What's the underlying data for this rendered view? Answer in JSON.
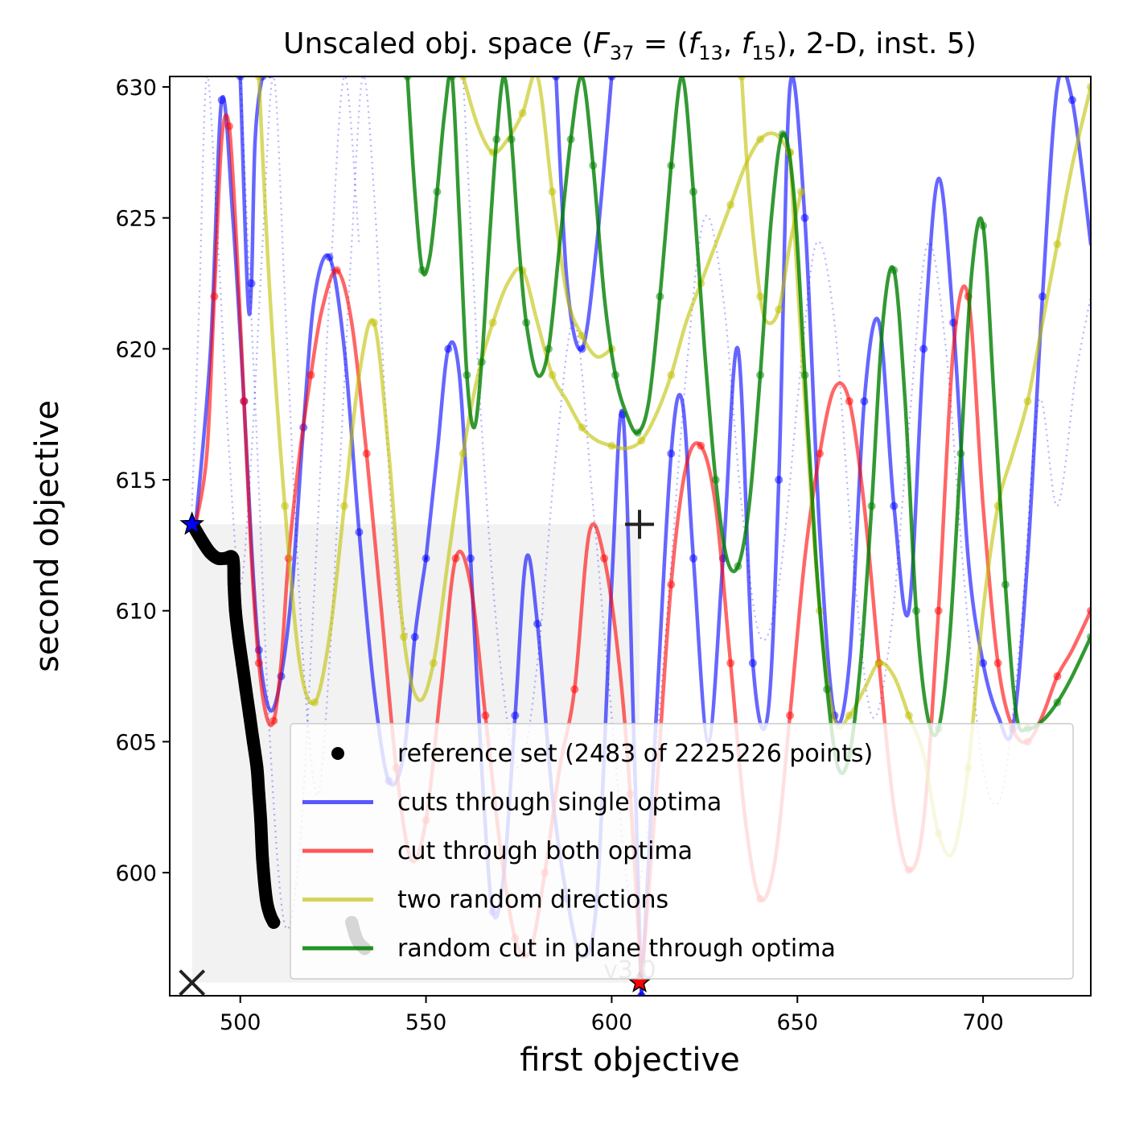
{
  "chart_data": {
    "type": "line",
    "title": "Unscaled obj. space (F37 = (f13, f15), 2-D, inst. 5)",
    "title_parts": {
      "pre": "Unscaled obj. space (",
      "F": "F",
      "F_sub": "37",
      "eq": " = (",
      "f1": "f",
      "f1_sub": "13",
      "comma": ", ",
      "f2": "f",
      "f2_sub": "15",
      "post": "), 2-D, inst. 5)"
    },
    "xlabel": "first objective",
    "ylabel": "second objective",
    "xlim": [
      481,
      729
    ],
    "ylim": [
      595.3,
      630.4
    ],
    "xticks": [
      500,
      550,
      600,
      650,
      700
    ],
    "yticks": [
      600,
      605,
      610,
      615,
      620,
      625,
      630
    ],
    "grid": false,
    "legend_position": "lower right",
    "watermark": "v3.0",
    "colors": {
      "blue": "#0000ff",
      "red": "#ff0000",
      "yellow": "#bfbf00",
      "green": "#007f00",
      "black": "#000000",
      "gray_fill": "#eeeeee"
    },
    "series": [
      {
        "name": "reference set (2483 of 2225226 points)",
        "kind": "points",
        "color": "#000000",
        "segments": [
          {
            "x": [
              487.5,
              490.0,
              492.0,
              494.0,
              496.0,
              498.0,
              498.3,
              498.7,
              499.5,
              500.5,
              501.5,
              502.5,
              503.5,
              504.5,
              505.0,
              505.5,
              506.0,
              507.0,
              508.0,
              509.0
            ],
            "y": [
              613.2,
              612.6,
              612.2,
              612.0,
              612.0,
              612.0,
              611.0,
              610.0,
              609.0,
              608.0,
              607.0,
              606.0,
              605.0,
              604.0,
              603.0,
              602.0,
              600.5,
              599.0,
              598.4,
              598.1
            ]
          },
          {
            "x": [
              530.0,
              531.0,
              532.0,
              533.5
            ],
            "y": [
              598.1,
              597.6,
              597.3,
              597.1
            ]
          }
        ]
      },
      {
        "name": "cuts through single optima",
        "kind": "line",
        "color": "#0000ff",
        "curves": [
          {
            "x": [
              488,
              492,
              495,
              498,
              501,
              503,
              505,
              508,
              511,
              514,
              517,
              520,
              524,
              528,
              532,
              536,
              540,
              544,
              547,
              550
            ],
            "y": [
              613.3,
              620.0,
              629.5,
              625.0,
              618.0,
              612.5,
              608.5,
              606.2,
              607.5,
              611.0,
              617.0,
              622.0,
              623.5,
              620.0,
              613.0,
              607.0,
              603.5,
              604.5,
              609.0,
              612.0
            ]
          },
          {
            "x": [
              550,
              553,
              556,
              559,
              562,
              565,
              568,
              571,
              574,
              577,
              580,
              584,
              588,
              592,
              596,
              600,
              603,
              606,
              608
            ],
            "y": [
              612.0,
              616.0,
              620.0,
              619.0,
              612.0,
              604.0,
              598.5,
              600.0,
              606.0,
              612.0,
              609.5,
              603.0,
              599.0,
              596.8,
              599.0,
              611.0,
              617.5,
              605.0,
              595.3
            ]
          },
          {
            "x": [
              608,
              612,
              616,
              619,
              622,
              626,
              630,
              634,
              638,
              642,
              645,
              648,
              652,
              656,
              660,
              664,
              668,
              672,
              676,
              680,
              684,
              688,
              692,
              696,
              700,
              704,
              708,
              712,
              716,
              720,
              724,
              729
            ],
            "y": [
              595.3,
              606.0,
              616.0,
              618.0,
              612.0,
              605.0,
              612.0,
              620.0,
              608.0,
              606.0,
              615.0,
              630.0,
              625.0,
              613.0,
              606.0,
              608.0,
              618.0,
              621.0,
              614.0,
              610.0,
              620.0,
              626.5,
              621.0,
              612.0,
              608.0,
              606.0,
              605.5,
              612.0,
              622.0,
              630.0,
              629.5,
              624.0
            ]
          },
          {
            "x": [
              500,
              502,
              503,
              504,
              506,
              508
            ],
            "y": [
              630.4,
              622.0,
              622.5,
              628.0,
              630.4,
              630.4
            ]
          },
          {
            "x": [
              585,
              588,
              592,
              596,
              600
            ],
            "y": [
              630.4,
              622.5,
              620.0,
              624.0,
              630.4
            ]
          }
        ]
      },
      {
        "name": "cut through both optima",
        "kind": "line",
        "color": "#ff0000",
        "curves": [
          {
            "x": [
              488,
              491,
              493,
              495,
              497,
              499,
              501,
              503,
              505,
              507,
              509,
              511,
              513,
              516,
              519,
              522,
              526,
              530,
              534,
              538,
              542,
              546,
              550,
              554,
              558,
              562,
              566,
              570,
              574,
              578,
              582,
              586,
              590,
              594,
              598,
              602,
              605,
              608
            ],
            "y": [
              613.3,
              616.0,
              622.0,
              628.0,
              628.5,
              624.0,
              618.0,
              612.0,
              608.0,
              606.0,
              605.8,
              608.0,
              612.0,
              616.0,
              619.0,
              621.5,
              623.0,
              621.0,
              616.0,
              610.0,
              604.0,
              600.5,
              602.0,
              607.0,
              612.0,
              611.0,
              606.0,
              601.0,
              597.5,
              597.0,
              600.0,
              604.0,
              607.0,
              613.0,
              612.0,
              608.0,
              603.0,
              595.8
            ]
          },
          {
            "x": [
              608,
              612,
              616,
              620,
              624,
              628,
              632,
              636,
              640,
              644,
              648,
              652,
              656,
              660,
              664,
              668,
              672,
              676,
              680,
              684,
              688,
              692,
              696,
              700,
              704,
              708,
              712,
              716,
              720,
              724,
              729
            ],
            "y": [
              595.8,
              603.0,
              611.0,
              615.5,
              616.3,
              614.0,
              608.0,
              602.0,
              599.0,
              600.5,
              606.0,
              612.0,
              616.0,
              618.5,
              618.0,
              614.0,
              608.0,
              602.5,
              600.1,
              602.0,
              610.0,
              620.0,
              622.0,
              614.0,
              608.0,
              605.5,
              605.0,
              606.0,
              607.5,
              608.5,
              610.0
            ]
          }
        ]
      },
      {
        "name": "two random directions",
        "kind": "line",
        "color": "#bfbf00",
        "curves": [
          {
            "x": [
              505,
              508,
              512,
              516,
              520,
              524,
              528,
              532,
              536,
              540,
              544,
              548,
              552,
              556,
              560,
              564,
              568,
              572,
              576,
              580,
              584,
              588,
              592,
              596,
              600,
              604,
              608,
              612,
              616,
              620,
              624,
              628,
              632,
              636,
              640,
              644,
              648
            ],
            "y": [
              630.4,
              622.0,
              614.0,
              608.0,
              606.5,
              609.0,
              614.0,
              619.0,
              621.0,
              616.0,
              609.0,
              606.6,
              608.0,
              612.0,
              616.0,
              619.0,
              621.0,
              622.5,
              623.0,
              621.0,
              619.0,
              618.0,
              617.0,
              616.5,
              616.3,
              616.2,
              616.5,
              617.5,
              619.0,
              621.0,
              622.5,
              624.0,
              625.5,
              627.0,
              628.0,
              628.2,
              627.5
            ]
          },
          {
            "x": [
              648,
              652,
              656,
              660,
              664,
              668,
              672,
              676,
              680,
              684,
              688,
              692,
              696,
              700,
              704,
              708,
              712,
              716,
              720,
              724,
              729
            ],
            "y": [
              627.5,
              618.0,
              610.0,
              605.8,
              606.0,
              607.0,
              608.0,
              607.5,
              606.0,
              604.5,
              601.5,
              600.8,
              604.0,
              610.0,
              614.0,
              616.0,
              618.0,
              621.0,
              624.0,
              627.0,
              630.0
            ]
          },
          {
            "x": [
              560,
              564,
              568,
              572,
              576,
              580,
              584,
              588,
              592,
              596,
              600
            ],
            "y": [
              630.4,
              628.5,
              627.5,
              628.0,
              629.0,
              630.4,
              626.0,
              622.0,
              620.5,
              619.7,
              620.0
            ]
          },
          {
            "x": [
              635,
              637,
              640,
              642,
              645,
              648,
              651
            ],
            "y": [
              630.4,
              626.0,
              622.0,
              621.0,
              621.5,
              624.0,
              626.0
            ]
          }
        ]
      },
      {
        "name": "random cut in plane through optima",
        "kind": "line",
        "color": "#007f00",
        "curves": [
          {
            "x": [
              545,
              547,
              549,
              551,
              553,
              555,
              557,
              559,
              561,
              563,
              565,
              567,
              569,
              571,
              573,
              575,
              577,
              580,
              583,
              586,
              589,
              592,
              595,
              598,
              601,
              604,
              607,
              610,
              613,
              616
            ],
            "y": [
              630.4,
              626.0,
              623.0,
              623.5,
              626.0,
              629.0,
              630.4,
              625.0,
              619.0,
              617.0,
              619.5,
              624.0,
              628.0,
              630.4,
              628.0,
              624.0,
              621.0,
              619.0,
              620.0,
              624.0,
              628.0,
              630.4,
              627.0,
              622.0,
              619.0,
              617.5,
              616.8,
              618.0,
              622.0,
              627.0
            ]
          },
          {
            "x": [
              616,
              619,
              622,
              625,
              628,
              631,
              634,
              637,
              640,
              643,
              646,
              649,
              652,
              655,
              658,
              661,
              664,
              667,
              670,
              673,
              676,
              679,
              682,
              685,
              688,
              691,
              694,
              697,
              700,
              703,
              706,
              709,
              712,
              716,
              720,
              724,
              729
            ],
            "y": [
              627.0,
              630.4,
              626.0,
              620.0,
              615.0,
              612.0,
              611.7,
              614.0,
              619.0,
              625.0,
              628.2,
              626.0,
              619.0,
              612.0,
              607.0,
              604.0,
              604.5,
              608.0,
              614.0,
              621.0,
              623.0,
              618.0,
              610.0,
              606.0,
              605.5,
              609.0,
              616.0,
              623.0,
              624.7,
              618.0,
              611.0,
              606.0,
              605.5,
              605.8,
              606.5,
              607.5,
              609.0
            ]
          }
        ]
      },
      {
        "name": "",
        "kind": "dotted",
        "color": "#0000ff",
        "curves": [
          {
            "x": [
              487,
              489,
              491,
              494,
              497,
              500,
              503,
              506,
              509,
              512,
              515,
              518,
              521,
              524,
              527,
              530,
              533,
              536,
              539,
              542,
              545
            ],
            "y": [
              614.0,
              622.0,
              630.4,
              624.0,
              616.0,
              611.0,
              616.0,
              624.0,
              630.4,
              622.0,
              613.0,
              606.0,
              603.0,
              608.0,
              616.0,
              624.0,
              630.4,
              626.0,
              618.0,
              611.0,
              609.0
            ]
          },
          {
            "x": [
              500,
              504,
              508,
              512,
              516,
              520,
              524,
              528,
              532
            ],
            "y": [
              630.4,
              618.0,
              605.0,
              598.0,
              601.0,
              611.0,
              622.0,
              630.4,
              624.0
            ]
          },
          {
            "x": [
              560,
              565,
              570,
              575,
              580,
              585,
              590,
              595,
              600,
              605,
              610,
              615,
              620,
              625,
              630,
              635,
              640,
              645,
              650
            ],
            "y": [
              630.4,
              617.0,
              608.0,
              604.0,
              608.0,
              616.0,
              621.0,
              614.0,
              606.0,
              599.0,
              602.0,
              610.0,
              619.0,
              625.0,
              622.0,
              614.0,
              609.0,
              611.0,
              618.0
            ]
          },
          {
            "x": [
              650,
              655,
              660,
              665,
              670,
              675,
              680,
              685,
              690,
              695,
              700,
              705,
              710,
              715,
              720,
              725,
              729
            ],
            "y": [
              618.0,
              624.0,
              621.0,
              612.0,
              606.0,
              609.0,
              617.0,
              624.0,
              620.0,
              611.0,
              604.0,
              603.0,
              609.0,
              618.0,
              614.0,
              619.0,
              622.0
            ]
          }
        ]
      }
    ],
    "markers": {
      "ideal_point": {
        "x": 487.0,
        "y": 595.8,
        "symbol": "x"
      },
      "nadir_point": {
        "x": 607.5,
        "y": 613.3,
        "symbol": "+"
      },
      "optimum_1": {
        "x": 487.0,
        "y": 613.3,
        "symbol": "star",
        "color": "#0000ff"
      },
      "optimum_2": {
        "x": 607.5,
        "y": 595.8,
        "symbol": "star",
        "color": "#ff0000"
      }
    },
    "dominated_region": {
      "x": [
        487.0,
        607.5
      ],
      "y": [
        595.8,
        613.3
      ]
    }
  }
}
